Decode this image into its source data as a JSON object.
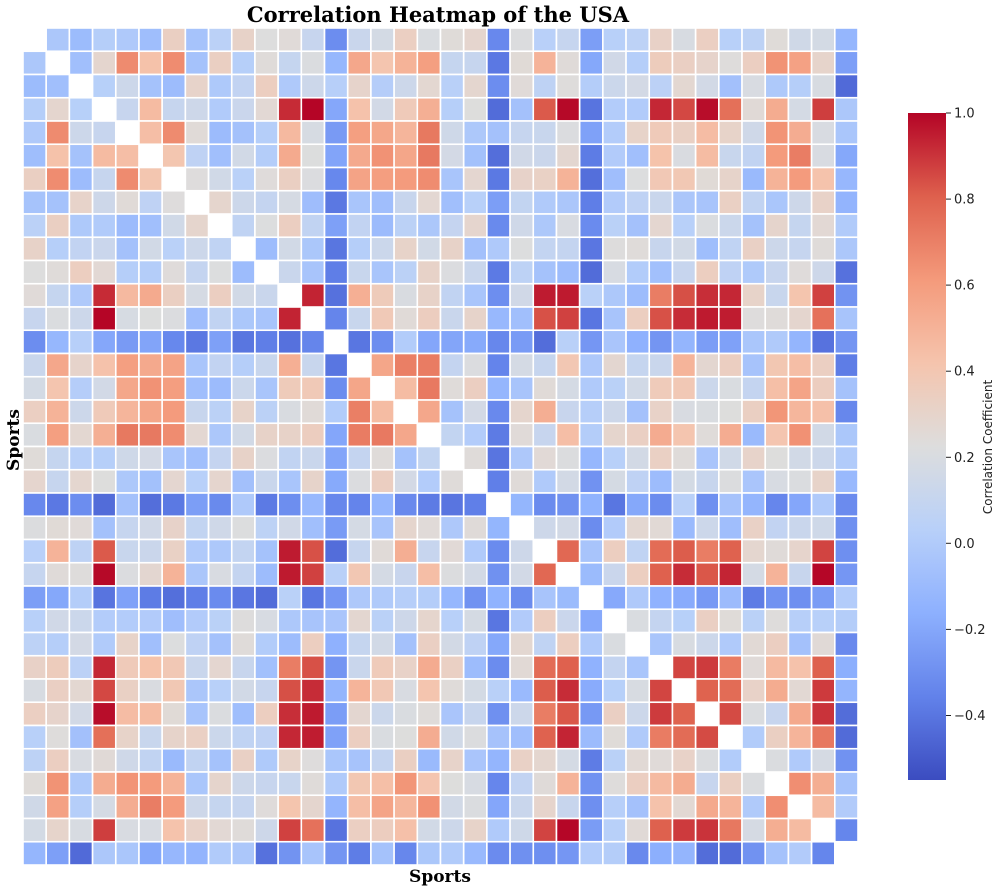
{
  "chart_data": {
    "type": "heatmap",
    "title": "Correlation Heatmap of the USA",
    "xlabel": "Sports",
    "ylabel": "Sports",
    "size": 36,
    "diagonal_masked": true,
    "grid": true,
    "colormap": "coolwarm",
    "vmin": -0.55,
    "vmax": 1.0,
    "colorbar": {
      "label": "Correlation Coefficient",
      "ticks": [
        1.0,
        0.8,
        0.6,
        0.4,
        0.2,
        0.0,
        -0.2,
        -0.4
      ],
      "tick_labels": [
        "1.0",
        "0.8",
        "0.6",
        "0.4",
        "0.2",
        "0.0",
        "−0.2",
        "−0.4"
      ]
    },
    "cluster_a": [
      3,
      11,
      12,
      22,
      23,
      27,
      28,
      29,
      30,
      34
    ],
    "cluster_b": [
      1,
      4,
      5,
      6,
      14,
      15,
      16,
      17,
      32,
      33
    ],
    "negative_rows": [
      13,
      20,
      24,
      35
    ],
    "cluster_a_corr": 0.85,
    "cluster_b_corr": 0.55,
    "cross_corr": 0.32,
    "background_corr": 0.12,
    "negative_corr": -0.2
  }
}
